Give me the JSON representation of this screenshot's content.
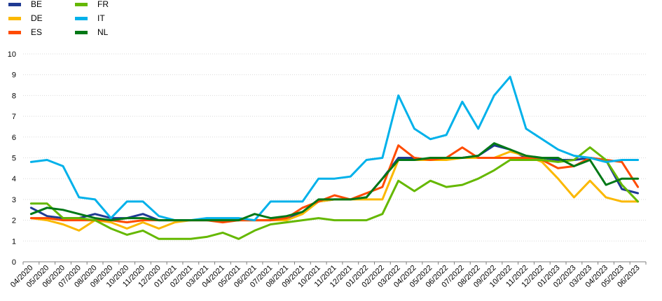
{
  "chart_data": {
    "type": "line",
    "title": "",
    "xlabel": "",
    "ylabel": "",
    "ylim": [
      0,
      10
    ],
    "yticks": [
      "0",
      "1",
      "2",
      "3",
      "4",
      "5",
      "6",
      "7",
      "8",
      "9",
      "10"
    ],
    "grid": "horizontal",
    "legend_position": "top-left",
    "categories": [
      "04/2020",
      "05/2020",
      "06/2020",
      "07/2020",
      "08/2020",
      "09/2020",
      "10/2020",
      "11/2020",
      "12/2020",
      "01/2021",
      "02/2021",
      "03/2021",
      "04/2021",
      "05/2021",
      "06/2021",
      "07/2021",
      "08/2021",
      "09/2021",
      "10/2021",
      "11/2021",
      "12/2021",
      "01/2022",
      "02/2022",
      "03/2022",
      "04/2022",
      "05/2022",
      "06/2022",
      "07/2022",
      "08/2022",
      "09/2022",
      "10/2022",
      "11/2022",
      "12/2022",
      "01/2023",
      "02/2023",
      "03/2023",
      "04/2023",
      "05/2023",
      "06/2023"
    ],
    "series": [
      {
        "name": "BE",
        "color": "#1f3a93",
        "values": [
          2.6,
          2.2,
          2.1,
          2.1,
          2.3,
          2.1,
          2.1,
          2.3,
          2.0,
          2.0,
          2.0,
          2.0,
          2.0,
          2.0,
          2.0,
          2.0,
          2.1,
          2.4,
          2.9,
          3.0,
          3.0,
          3.1,
          4.0,
          5.0,
          5.0,
          4.9,
          5.0,
          5.0,
          5.1,
          5.6,
          5.4,
          5.0,
          5.0,
          4.9,
          4.9,
          5.0,
          4.9,
          3.5,
          3.3
        ]
      },
      {
        "name": "DE",
        "color": "#fbb800",
        "values": [
          2.1,
          2.0,
          1.8,
          1.5,
          2.0,
          1.9,
          1.6,
          1.9,
          1.6,
          1.9,
          2.0,
          2.0,
          2.0,
          2.0,
          2.0,
          2.0,
          2.0,
          2.3,
          2.9,
          3.0,
          3.0,
          3.0,
          3.0,
          4.9,
          4.9,
          4.9,
          4.9,
          5.0,
          5.0,
          5.0,
          5.3,
          5.1,
          4.8,
          4.0,
          3.1,
          3.9,
          3.1,
          2.9,
          2.9
        ]
      },
      {
        "name": "ES",
        "color": "#ff4b00",
        "values": [
          2.1,
          2.1,
          2.0,
          2.0,
          2.0,
          2.0,
          1.9,
          2.0,
          2.0,
          2.0,
          2.0,
          2.0,
          1.9,
          2.0,
          2.0,
          2.0,
          2.1,
          2.6,
          2.9,
          3.2,
          3.0,
          3.3,
          3.6,
          5.6,
          5.0,
          4.9,
          5.0,
          5.5,
          5.0,
          5.0,
          5.0,
          5.0,
          4.9,
          4.5,
          4.6,
          5.0,
          4.9,
          4.8,
          3.6
        ]
      },
      {
        "name": "FR",
        "color": "#65b800",
        "values": [
          2.8,
          2.8,
          2.1,
          2.1,
          2.0,
          1.6,
          1.3,
          1.5,
          1.1,
          1.1,
          1.1,
          1.2,
          1.4,
          1.1,
          1.5,
          1.8,
          1.9,
          2.0,
          2.1,
          2.0,
          2.0,
          2.0,
          2.3,
          3.9,
          3.4,
          3.9,
          3.6,
          3.7,
          4.0,
          4.4,
          4.9,
          4.9,
          4.9,
          4.8,
          4.9,
          5.5,
          4.9,
          3.7,
          2.9
        ]
      },
      {
        "name": "IT",
        "color": "#00b1ea",
        "values": [
          4.8,
          4.9,
          4.6,
          3.1,
          3.0,
          2.1,
          2.9,
          2.9,
          2.2,
          2.0,
          2.0,
          2.1,
          2.1,
          2.1,
          2.0,
          2.9,
          2.9,
          2.9,
          4.0,
          4.0,
          4.1,
          4.9,
          5.0,
          8.0,
          6.4,
          5.9,
          6.1,
          7.7,
          6.4,
          8.0,
          8.9,
          6.4,
          5.9,
          5.4,
          5.1,
          5.0,
          4.8,
          4.9,
          4.9
        ]
      },
      {
        "name": "NL",
        "color": "#007816",
        "values": [
          2.3,
          2.6,
          2.5,
          2.3,
          2.1,
          2.0,
          2.1,
          2.1,
          2.0,
          2.0,
          2.0,
          2.0,
          2.0,
          2.0,
          2.3,
          2.1,
          2.2,
          2.4,
          3.0,
          3.0,
          3.0,
          3.1,
          4.0,
          4.9,
          4.9,
          5.0,
          5.0,
          5.0,
          5.1,
          5.7,
          5.4,
          5.1,
          5.0,
          5.0,
          4.6,
          4.9,
          3.7,
          4.0,
          4.0
        ]
      }
    ]
  }
}
